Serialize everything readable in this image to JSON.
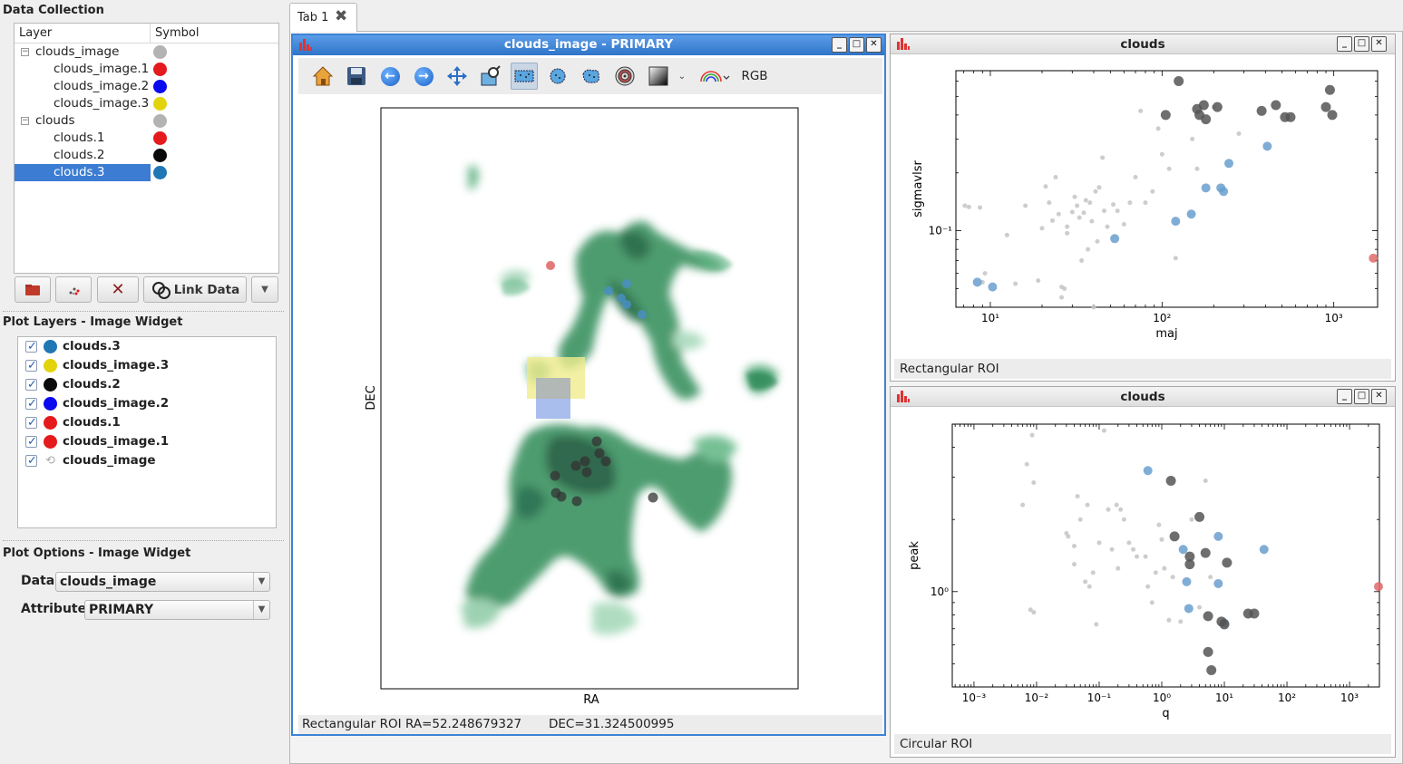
{
  "data_collection": {
    "title": "Data Collection",
    "columns": [
      "Layer",
      "Symbol"
    ],
    "items": [
      {
        "label": "clouds_image",
        "color": "#b3b3b3",
        "level": 0,
        "expanded": true
      },
      {
        "label": "clouds_image.1",
        "color": "#e41a1c",
        "level": 1
      },
      {
        "label": "clouds_image.2",
        "color": "#0a0aee",
        "level": 1
      },
      {
        "label": "clouds_image.3",
        "color": "#e3d30a",
        "level": 1
      },
      {
        "label": "clouds",
        "color": "#b3b3b3",
        "level": 0,
        "expanded": true
      },
      {
        "label": "clouds.1",
        "color": "#e41a1c",
        "level": 1
      },
      {
        "label": "clouds.2",
        "color": "#0a0a0a",
        "level": 1
      },
      {
        "label": "clouds.3",
        "color": "#1f77b4",
        "level": 1,
        "selected": true
      }
    ],
    "link_data_label": "Link Data"
  },
  "plot_layers": {
    "title": "Plot Layers - Image Widget",
    "items": [
      {
        "label": "clouds.3",
        "color": "#1f77b4"
      },
      {
        "label": "clouds_image.3",
        "color": "#e3d30a"
      },
      {
        "label": "clouds.2",
        "color": "#0a0a0a"
      },
      {
        "label": "clouds_image.2",
        "color": "#0a0aee"
      },
      {
        "label": "clouds.1",
        "color": "#e41a1c"
      },
      {
        "label": "clouds_image.1",
        "color": "#e41a1c"
      },
      {
        "label": "clouds_image",
        "color": "",
        "glyph": "S"
      }
    ]
  },
  "plot_options": {
    "title": "Plot Options - Image Widget",
    "data_label": "Data",
    "data_value": "clouds_image",
    "attribute_label": "Attribute",
    "attribute_value": "PRIMARY"
  },
  "tab": {
    "label": "Tab 1"
  },
  "image_window": {
    "title": "clouds_image - PRIMARY",
    "rgb_label": "RGB",
    "xlabel": "RA",
    "ylabel": "DEC",
    "status_mode": "Rectangular ROI",
    "status_ra": "RA=52.248679327",
    "status_dec": "DEC=31.324500995",
    "overlay_colors": {
      "roi_yellow": "#f0ec8c",
      "roi_blue": "#8ea8e8"
    }
  },
  "scatter1": {
    "title": "clouds",
    "status": "Rectangular ROI",
    "chart_data": {
      "type": "scatter",
      "xlabel": "maj",
      "ylabel": "sigmavlsr",
      "xscale": "log",
      "yscale": "log",
      "xlim": [
        6.3,
        1800
      ],
      "ylim": [
        0.04,
        0.68
      ],
      "xticks": [
        {
          "v": 10,
          "label": "10¹"
        },
        {
          "v": 100,
          "label": "10²"
        },
        {
          "v": 1000,
          "label": "10³"
        }
      ],
      "yticks": [
        {
          "v": 0.1,
          "label": "10⁻¹"
        }
      ],
      "series": [
        {
          "color": "#c8c8c8",
          "size": 2.5,
          "points": [
            [
              7.1,
              0.135
            ],
            [
              7.5,
              0.133
            ],
            [
              8.7,
              0.132
            ],
            [
              9.0,
              0.054
            ],
            [
              9.3,
              0.06
            ],
            [
              12.5,
              0.095
            ],
            [
              14,
              0.053
            ],
            [
              16,
              0.135
            ],
            [
              19,
              0.055
            ],
            [
              20,
              0.103
            ],
            [
              21,
              0.17
            ],
            [
              22,
              0.14
            ],
            [
              23,
              0.113
            ],
            [
              24,
              0.19
            ],
            [
              25,
              0.122
            ],
            [
              26,
              0.045
            ],
            [
              26,
              0.051
            ],
            [
              27,
              0.05
            ],
            [
              28,
              0.105
            ],
            [
              28,
              0.097
            ],
            [
              30,
              0.125
            ],
            [
              31,
              0.15
            ],
            [
              32,
              0.135
            ],
            [
              33,
              0.117
            ],
            [
              34,
              0.07
            ],
            [
              35,
              0.124
            ],
            [
              36,
              0.144
            ],
            [
              37,
              0.08
            ],
            [
              38,
              0.14
            ],
            [
              39,
              0.112
            ],
            [
              40,
              0.04
            ],
            [
              41,
              0.16
            ],
            [
              42,
              0.088
            ],
            [
              43,
              0.168
            ],
            [
              45,
              0.24
            ],
            [
              46,
              0.127
            ],
            [
              48,
              0.105
            ],
            [
              52,
              0.137
            ],
            [
              55,
              0.127
            ],
            [
              60,
              0.108
            ],
            [
              65,
              0.14
            ],
            [
              70,
              0.19
            ],
            [
              75,
              0.42
            ],
            [
              80,
              0.14
            ],
            [
              88,
              0.16
            ],
            [
              95,
              0.34
            ],
            [
              100,
              0.25
            ],
            [
              110,
              0.21
            ],
            [
              120,
              0.072
            ],
            [
              150,
              0.3
            ],
            [
              160,
              0.21
            ],
            [
              200,
              0.44
            ],
            [
              280,
              0.32
            ]
          ]
        },
        {
          "color": "#6a9fcf",
          "size": 5,
          "points": [
            [
              8.4,
              0.054
            ],
            [
              10.3,
              0.051
            ],
            [
              53,
              0.091
            ],
            [
              120,
              0.112
            ],
            [
              148,
              0.122
            ],
            [
              180,
              0.167
            ],
            [
              220,
              0.167
            ],
            [
              228,
              0.16
            ],
            [
              245,
              0.224
            ],
            [
              410,
              0.275
            ]
          ]
        },
        {
          "color": "#555555",
          "size": 5.5,
          "points": [
            [
              105,
              0.4
            ],
            [
              125,
              0.6
            ],
            [
              160,
              0.43
            ],
            [
              165,
              0.4
            ],
            [
              175,
              0.45
            ],
            [
              180,
              0.38
            ],
            [
              210,
              0.44
            ],
            [
              380,
              0.42
            ],
            [
              460,
              0.45
            ],
            [
              520,
              0.39
            ],
            [
              560,
              0.39
            ],
            [
              900,
              0.44
            ],
            [
              950,
              0.54
            ],
            [
              980,
              0.4
            ]
          ]
        },
        {
          "color": "#e06a6a",
          "size": 5,
          "points": [
            [
              1700,
              0.072
            ]
          ]
        }
      ]
    }
  },
  "scatter2": {
    "title": "clouds",
    "status": "Circular ROI",
    "chart_data": {
      "type": "scatter",
      "xlabel": "q",
      "ylabel": "peak",
      "xscale": "log",
      "yscale": "log",
      "xlim": [
        0.00045,
        3000
      ],
      "ylim": [
        0.4,
        5
      ],
      "xticks": [
        {
          "v": 0.001,
          "label": "10⁻³"
        },
        {
          "v": 0.01,
          "label": "10⁻²"
        },
        {
          "v": 0.1,
          "label": "10⁻¹"
        },
        {
          "v": 1,
          "label": "10⁰"
        },
        {
          "v": 10,
          "label": "10¹"
        },
        {
          "v": 100,
          "label": "10²"
        },
        {
          "v": 1000,
          "label": "10³"
        }
      ],
      "yticks": [
        {
          "v": 1,
          "label": "10⁰"
        }
      ],
      "series": [
        {
          "color": "#c8c8c8",
          "size": 2.5,
          "points": [
            [
              0.006,
              2.3
            ],
            [
              0.007,
              3.4
            ],
            [
              0.008,
              0.84
            ],
            [
              0.0085,
              4.5
            ],
            [
              0.009,
              0.82
            ],
            [
              0.009,
              2.85
            ],
            [
              0.03,
              1.75
            ],
            [
              0.032,
              1.7
            ],
            [
              0.04,
              1.55
            ],
            [
              0.04,
              1.3
            ],
            [
              0.045,
              2.5
            ],
            [
              0.05,
              2.0
            ],
            [
              0.06,
              1.1
            ],
            [
              0.065,
              2.3
            ],
            [
              0.07,
              1.05
            ],
            [
              0.08,
              1.2
            ],
            [
              0.09,
              0.73
            ],
            [
              0.1,
              1.6
            ],
            [
              0.12,
              4.7
            ],
            [
              0.14,
              2.2
            ],
            [
              0.16,
              1.5
            ],
            [
              0.19,
              2.3
            ],
            [
              0.2,
              1.25
            ],
            [
              0.22,
              2.2
            ],
            [
              0.25,
              2.0
            ],
            [
              0.3,
              1.6
            ],
            [
              0.35,
              1.5
            ],
            [
              0.4,
              1.4
            ],
            [
              0.55,
              1.4
            ],
            [
              0.6,
              1.05
            ],
            [
              0.7,
              0.9
            ],
            [
              0.8,
              1.2
            ],
            [
              0.9,
              1.9
            ],
            [
              1.0,
              1.65
            ],
            [
              1.1,
              1.25
            ],
            [
              1.3,
              0.76
            ],
            [
              1.5,
              1.15
            ],
            [
              2,
              0.75
            ],
            [
              3,
              2.0
            ],
            [
              4,
              0.86
            ],
            [
              5,
              2.9
            ],
            [
              6,
              1.15
            ]
          ]
        },
        {
          "color": "#6a9fcf",
          "size": 5,
          "points": [
            [
              0.6,
              3.2
            ],
            [
              2.2,
              1.5
            ],
            [
              2.5,
              1.1
            ],
            [
              2.7,
              0.85
            ],
            [
              8,
              1.7
            ],
            [
              8,
              1.08
            ],
            [
              10,
              0.74
            ],
            [
              43,
              1.5
            ]
          ]
        },
        {
          "color": "#555555",
          "size": 5.5,
          "points": [
            [
              1.4,
              2.9
            ],
            [
              1.6,
              1.7
            ],
            [
              2.8,
              1.3
            ],
            [
              2.8,
              1.4
            ],
            [
              4,
              2.05
            ],
            [
              5,
              1.45
            ],
            [
              5.5,
              0.79
            ],
            [
              5.5,
              0.56
            ],
            [
              6.2,
              0.47
            ],
            [
              9,
              0.75
            ],
            [
              10,
              0.73
            ],
            [
              11,
              1.32
            ],
            [
              24,
              0.81
            ],
            [
              30,
              0.81
            ]
          ]
        },
        {
          "color": "#e06a6a",
          "size": 5,
          "points": [
            [
              2900,
              1.05
            ]
          ]
        }
      ]
    }
  }
}
